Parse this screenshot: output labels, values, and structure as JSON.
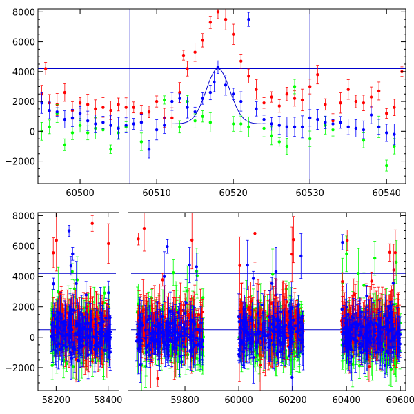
{
  "chart_data": [
    {
      "type": "scatter",
      "panel": "top",
      "xlim": [
        60494.5,
        60542.5
      ],
      "ylim": [
        -3500,
        8200
      ],
      "xticks": [
        60500,
        60510,
        60520,
        60530,
        60540
      ],
      "yticks": [
        -2000,
        0,
        2000,
        4000,
        6000,
        8000
      ],
      "xtick_labels": [
        "60500",
        "60510",
        "60520",
        "60530",
        "60540"
      ],
      "ytick_labels": [
        "−2000",
        "0",
        "2000",
        "4000",
        "6000",
        "8000"
      ],
      "grid": false,
      "hlines": [
        4200,
        500
      ],
      "vlines": [
        60506.5,
        60530
      ],
      "colors": {
        "red": "#ff0000",
        "green": "#00ff00",
        "blue": "#0000ff",
        "axes": "#000000",
        "lines": "#0000cc"
      },
      "model_curve": {
        "x_start": 60509,
        "x_end": 60538,
        "baseline": 500,
        "peak": 4200,
        "peak_x": 60518,
        "width": 2.2
      },
      "series": [
        {
          "color": "red",
          "points": [
            [
              60495,
              2500
            ],
            [
              60495.5,
              4200
            ],
            [
              60496,
              1900
            ],
            [
              60497,
              1800
            ],
            [
              60498,
              2600
            ],
            [
              60499,
              1400
            ],
            [
              60500,
              1900
            ],
            [
              60501,
              1800
            ],
            [
              60502,
              1500
            ],
            [
              60503,
              1600
            ],
            [
              60504,
              1400
            ],
            [
              60505,
              1800
            ],
            [
              60506,
              1600
            ],
            [
              60507,
              1600
            ],
            [
              60508,
              1200
            ],
            [
              60509,
              1300
            ],
            [
              60510,
              2000
            ],
            [
              60511,
              900
            ],
            [
              60512,
              900
            ],
            [
              60513,
              2600
            ],
            [
              60513.5,
              5100
            ],
            [
              60514,
              4200
            ],
            [
              60515,
              5300
            ],
            [
              60516,
              6100
            ],
            [
              60517,
              7300
            ],
            [
              60518,
              8000
            ],
            [
              60519,
              7500
            ],
            [
              60520,
              6500
            ],
            [
              60521,
              4700
            ],
            [
              60522,
              3700
            ],
            [
              60523,
              2800
            ],
            [
              60524,
              1900
            ],
            [
              60525,
              2300
            ],
            [
              60526,
              1700
            ],
            [
              60527,
              2500
            ],
            [
              60528,
              2200
            ],
            [
              60529,
              2100
            ],
            [
              60530,
              3000
            ],
            [
              60531,
              3800
            ],
            [
              60532,
              1800
            ],
            [
              60533,
              700
            ],
            [
              60534,
              1900
            ],
            [
              60535,
              2800
            ],
            [
              60536,
              2000
            ],
            [
              60537,
              1900
            ],
            [
              60538,
              2300
            ],
            [
              60539,
              2700
            ],
            [
              60540,
              1200
            ],
            [
              60541,
              1600
            ],
            [
              60542,
              4000
            ]
          ]
        },
        {
          "color": "green",
          "points": [
            [
              60495,
              0
            ],
            [
              60496,
              300
            ],
            [
              60497,
              1200
            ],
            [
              60498,
              -900
            ],
            [
              60499,
              -100
            ],
            [
              60500,
              400
            ],
            [
              60501,
              -100
            ],
            [
              60502,
              200
            ],
            [
              60503,
              100
            ],
            [
              60504,
              -1200
            ],
            [
              60505,
              -100
            ],
            [
              60506,
              300
            ],
            [
              60508,
              -700
            ],
            [
              60511,
              2100
            ],
            [
              60513,
              300
            ],
            [
              60514,
              2000
            ],
            [
              60515,
              700
            ],
            [
              60516,
              1000
            ],
            [
              60517,
              600
            ],
            [
              60520,
              500
            ],
            [
              60521,
              500
            ],
            [
              60522,
              300
            ],
            [
              60524,
              200
            ],
            [
              60525,
              -300
            ],
            [
              60526,
              -700
            ],
            [
              60527,
              -1000
            ],
            [
              60528,
              3000
            ],
            [
              60530,
              -500
            ],
            [
              60532,
              400
            ],
            [
              60533,
              100
            ],
            [
              60537,
              -600
            ],
            [
              60539,
              300
            ],
            [
              60540,
              -2300
            ],
            [
              60541,
              -1000
            ]
          ]
        },
        {
          "color": "blue",
          "points": [
            [
              60495,
              1900
            ],
            [
              60496,
              1400
            ],
            [
              60497,
              1300
            ],
            [
              60498,
              800
            ],
            [
              60499,
              900
            ],
            [
              60500,
              1200
            ],
            [
              60501,
              700
            ],
            [
              60502,
              500
            ],
            [
              60503,
              600
            ],
            [
              60504,
              400
            ],
            [
              60505,
              200
            ],
            [
              60506,
              400
            ],
            [
              60507,
              500
            ],
            [
              60508,
              600
            ],
            [
              60509,
              -1200
            ],
            [
              60510,
              100
            ],
            [
              60511,
              400
            ],
            [
              60512,
              2000
            ],
            [
              60513,
              2200
            ],
            [
              60514,
              1600
            ],
            [
              60515,
              1300
            ],
            [
              60516,
              2200
            ],
            [
              60517,
              2600
            ],
            [
              60517.5,
              3300
            ],
            [
              60518,
              4300
            ],
            [
              60519,
              3100
            ],
            [
              60520,
              2500
            ],
            [
              60521,
              2000
            ],
            [
              60522,
              7500
            ],
            [
              60523,
              1500
            ],
            [
              60524,
              800
            ],
            [
              60525,
              500
            ],
            [
              60526,
              400
            ],
            [
              60527,
              300
            ],
            [
              60528,
              300
            ],
            [
              60529,
              300
            ],
            [
              60530,
              900
            ],
            [
              60531,
              800
            ],
            [
              60532,
              600
            ],
            [
              60533,
              500
            ],
            [
              60534,
              600
            ],
            [
              60535,
              300
            ],
            [
              60536,
              200
            ],
            [
              60537,
              100
            ],
            [
              60538,
              1100
            ],
            [
              60539,
              300
            ],
            [
              60540,
              -100
            ],
            [
              60541,
              -200
            ]
          ]
        }
      ]
    },
    {
      "type": "scatter",
      "panel": "bottom",
      "xlim": [
        58130,
        60620
      ],
      "ylim": [
        -3500,
        8200
      ],
      "xticks": [
        58200,
        58400,
        59800,
        60000,
        60200,
        60400,
        60600
      ],
      "yticks": [
        -2000,
        0,
        2000,
        4000,
        6000,
        8000
      ],
      "xtick_labels": [
        "58200",
        "58400",
        "59800",
        "60000",
        "60200",
        "60400",
        "60600"
      ],
      "ytick_labels": [
        "−2000",
        "0",
        "2000",
        "4000",
        "6000",
        "8000"
      ],
      "grid": false,
      "hlines": [
        4200,
        500
      ],
      "axis_break": {
        "left_range": [
          58130,
          58430
        ],
        "right_range": [
          59600,
          60620
        ]
      },
      "colors": {
        "red": "#ff0000",
        "green": "#00ff00",
        "blue": "#0000ff",
        "axes": "#000000",
        "lines": "#0000cc"
      },
      "seasons": [
        [
          58180,
          58410
        ],
        [
          59620,
          59870
        ],
        [
          60000,
          60240
        ],
        [
          60380,
          60600
        ]
      ],
      "season_scatter": {
        "red": 1400,
        "green": 2200,
        "blue": 1700
      },
      "season_offset": {
        "red": 700,
        "green": 200,
        "blue": 200
      }
    }
  ]
}
